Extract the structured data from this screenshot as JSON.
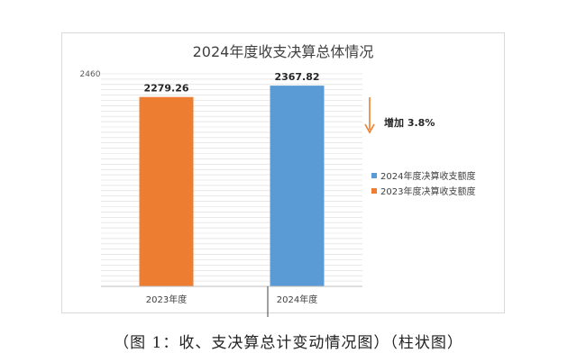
{
  "chart_data": {
    "type": "bar",
    "title": "2024年度收支决算总体情况",
    "categories": [
      "2023年度",
      "2024年度"
    ],
    "series": [
      {
        "name": "2023年度决算收支额度",
        "color": "#ed7d31",
        "values": [
          2279.26,
          null
        ]
      },
      {
        "name": "2024年度决算收支额度",
        "color": "#5b9bd5",
        "values": [
          null,
          2367.82
        ]
      }
    ],
    "data_labels": [
      "2279.26",
      "2367.82"
    ],
    "ylim": [
      800,
      2460
    ],
    "y_top_label": "2460",
    "grid": true,
    "legend_position": "right"
  },
  "annotation": {
    "text": "增加 3.8%",
    "color": "#ed7d31"
  },
  "caption": "（图 1：收、支决算总计变动情况图）（柱状图）"
}
